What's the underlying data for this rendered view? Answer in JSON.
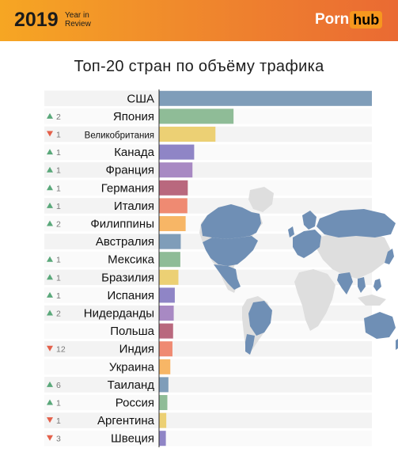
{
  "header": {
    "year": "2019",
    "year_in_review_line1": "Year in",
    "year_in_review_line2": "Review",
    "logo_part1": "Porn",
    "logo_part2": "hub",
    "bg_color_start": "#f6a623",
    "bg_color_end": "#ea6a33"
  },
  "chart_data": {
    "type": "bar",
    "orientation": "horizontal",
    "title": "Топ-20 стран по объёму трафика",
    "categories": [
      "США",
      "Япония",
      "Великобритания",
      "Канада",
      "Франция",
      "Германия",
      "Италия",
      "Филиппины",
      "Австралия",
      "Мексика",
      "Бразилия",
      "Испания",
      "Нидерданды",
      "Польша",
      "Индия",
      "Украина",
      "Таиланд",
      "Россия",
      "Аргентина",
      "Швеция"
    ],
    "values": [
      100,
      35,
      26.5,
      16.5,
      15.7,
      13.5,
      13.3,
      12.5,
      10.2,
      10,
      9.1,
      7.4,
      6.9,
      6.6,
      6.3,
      5.3,
      4.4,
      3.9,
      3.4,
      3.2
    ],
    "changes": [
      {
        "dir": "",
        "value": ""
      },
      {
        "dir": "up",
        "value": "2"
      },
      {
        "dir": "down",
        "value": "1"
      },
      {
        "dir": "up",
        "value": "1"
      },
      {
        "dir": "up",
        "value": "1"
      },
      {
        "dir": "up",
        "value": "1"
      },
      {
        "dir": "up",
        "value": "1"
      },
      {
        "dir": "up",
        "value": "2"
      },
      {
        "dir": "",
        "value": ""
      },
      {
        "dir": "up",
        "value": "1"
      },
      {
        "dir": "up",
        "value": "1"
      },
      {
        "dir": "up",
        "value": "1"
      },
      {
        "dir": "up",
        "value": "2"
      },
      {
        "dir": "",
        "value": ""
      },
      {
        "dir": "down",
        "value": "12"
      },
      {
        "dir": "",
        "value": ""
      },
      {
        "dir": "up",
        "value": "6"
      },
      {
        "dir": "up",
        "value": "1"
      },
      {
        "dir": "down",
        "value": "1"
      },
      {
        "dir": "down",
        "value": "3"
      }
    ],
    "colors": [
      "#7f9db9",
      "#8fbc97",
      "#ecd074",
      "#8f85c6",
      "#a889c3",
      "#b9687e",
      "#ef8a72",
      "#f7b666",
      "#7f9db9",
      "#8fbc97",
      "#ecd074",
      "#8f85c6",
      "#a889c3",
      "#b9687e",
      "#ef8a72",
      "#f7b666",
      "#7f9db9",
      "#8fbc97",
      "#ecd074",
      "#8f85c6"
    ],
    "xlim": [
      0,
      100
    ],
    "grid": false,
    "legend": "none"
  },
  "map": {
    "highlight_color": "#6f8fb5",
    "other_color": "#dedede",
    "icon": "world-map-icon"
  }
}
